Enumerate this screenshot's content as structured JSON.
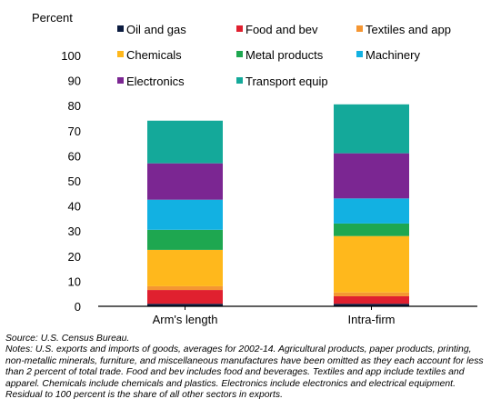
{
  "chart_data": {
    "type": "bar",
    "stacked": true,
    "ylabel": "Percent",
    "ylim": [
      0,
      100
    ],
    "yticks": [
      0,
      10,
      20,
      30,
      40,
      50,
      60,
      70,
      80,
      90,
      100
    ],
    "categories": [
      "Arm's length",
      "Intra-firm"
    ],
    "legend_position": "top",
    "series": [
      {
        "name": "Oil and gas",
        "color": "#0b1b3f",
        "values": [
          1.0,
          1.0
        ]
      },
      {
        "name": "Food and bev",
        "color": "#e0202f",
        "values": [
          5.5,
          3.0
        ]
      },
      {
        "name": "Textiles and app",
        "color": "#f59632",
        "values": [
          1.5,
          1.5
        ]
      },
      {
        "name": "Chemicals",
        "color": "#ffb81c",
        "values": [
          14.5,
          22.5
        ]
      },
      {
        "name": "Metal products",
        "color": "#1ea750",
        "values": [
          8.0,
          5.0
        ]
      },
      {
        "name": "Machinery",
        "color": "#12b1e2",
        "values": [
          12.0,
          10.0
        ]
      },
      {
        "name": "Electronics",
        "color": "#7b2692",
        "values": [
          14.5,
          18.0
        ]
      },
      {
        "name": "Transport equip",
        "color": "#14a99a",
        "values": [
          17.0,
          19.5
        ]
      }
    ]
  },
  "source": "Source: U.S. Census Bureau.",
  "notes": "Notes: U.S. exports and imports of goods, averages for 2002-14. Agricultural products, paper products, printing, non-metallic minerals, furniture, and miscellaneous manufactures have been omitted as they each account for less than 2 percent of total trade. Food and bev includes food and beverages. Textiles and app include textiles and apparel. Chemicals include chemicals and plastics. Electronics include electronics and electrical equipment. Residual to 100 percent is the share of all other sectors in exports."
}
